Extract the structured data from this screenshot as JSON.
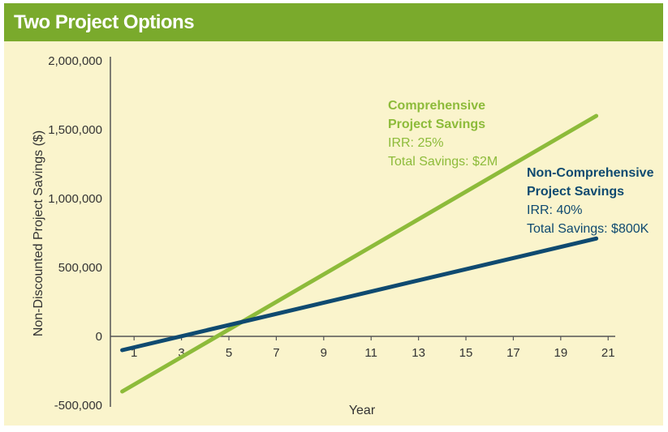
{
  "header": {
    "title": "Two Project Options"
  },
  "colors": {
    "header_bg": "#7aaa2c",
    "panel_bg": "#faf4cc",
    "comprehensive": "#8dbb3a",
    "non_comprehensive": "#0f4a70",
    "axis": "#555555"
  },
  "chart_data": {
    "type": "line",
    "title": "",
    "xlabel": "Year",
    "ylabel": "Non-Discounted Project Savings ($)",
    "xlim": [
      0,
      21.3
    ],
    "ylim": [
      -500000,
      2000000
    ],
    "x_ticks": [
      1,
      3,
      5,
      7,
      9,
      11,
      13,
      15,
      17,
      19,
      21
    ],
    "y_ticks": [
      {
        "value": 2000000,
        "label": "2,000,000"
      },
      {
        "value": 1500000,
        "label": "1,500,000"
      },
      {
        "value": 1000000,
        "label": "1,000,000"
      },
      {
        "value": 500000,
        "label": "500,000"
      },
      {
        "value": 0,
        "label": "0"
      },
      {
        "value": -500000,
        "label": "-500,000"
      }
    ],
    "grid": false,
    "series": [
      {
        "key": "comprehensive",
        "x": [
          0.5,
          20.5
        ],
        "values": [
          -400000,
          1600000
        ],
        "annotation": {
          "line1": "Comprehensive",
          "line2": "Project Savings",
          "line3": "IRR: 25%",
          "line4": "Total Savings: $2M"
        }
      },
      {
        "key": "non_comprehensive",
        "x": [
          0.5,
          20.5
        ],
        "values": [
          -100000,
          710000
        ],
        "annotation": {
          "line1": "Non-Comprehensive",
          "line2": "Project Savings",
          "line3": "IRR: 40%",
          "line4": "Total Savings: $800K"
        }
      }
    ]
  }
}
